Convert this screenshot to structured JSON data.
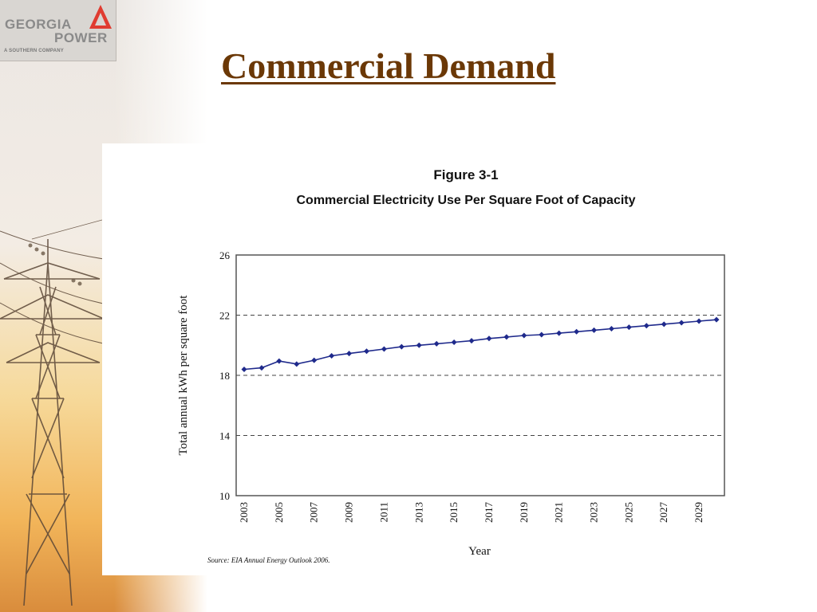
{
  "logo": {
    "line1": "GEORGIA",
    "line2": "POWER",
    "tagline": "A SOUTHERN COMPANY",
    "mark_color": "#e03c31"
  },
  "slide": {
    "title": "Commercial Demand"
  },
  "chart_data": {
    "type": "line",
    "figure_label": "Figure 3-1",
    "title": "Commercial Electricity Use Per Square Foot of Capacity",
    "xlabel": "Year",
    "ylabel": "Total annual kWh per square foot",
    "source": "Source: EIA Annual Energy Outlook 2006.",
    "xlim": [
      2003,
      2030
    ],
    "ylim": [
      10,
      26
    ],
    "y_ticks": [
      10,
      14,
      18,
      22,
      26
    ],
    "x_ticks": [
      2003,
      2005,
      2007,
      2009,
      2011,
      2013,
      2015,
      2017,
      2019,
      2021,
      2023,
      2025,
      2027,
      2029
    ],
    "grid": "horizontal dashed",
    "line_color": "#1f2a8c",
    "series": [
      {
        "x": [
          2003,
          2004,
          2005,
          2006,
          2007,
          2008,
          2009,
          2010,
          2011,
          2012,
          2013,
          2014,
          2015,
          2016,
          2017,
          2018,
          2019,
          2020,
          2021,
          2022,
          2023,
          2024,
          2025,
          2026,
          2027,
          2028,
          2029,
          2030
        ],
        "values": [
          18.4,
          18.5,
          18.95,
          18.75,
          19.0,
          19.3,
          19.45,
          19.6,
          19.75,
          19.9,
          20.0,
          20.1,
          20.2,
          20.3,
          20.45,
          20.55,
          20.65,
          20.7,
          20.8,
          20.9,
          21.0,
          21.1,
          21.2,
          21.3,
          21.4,
          21.5,
          21.6,
          21.7
        ]
      }
    ]
  }
}
